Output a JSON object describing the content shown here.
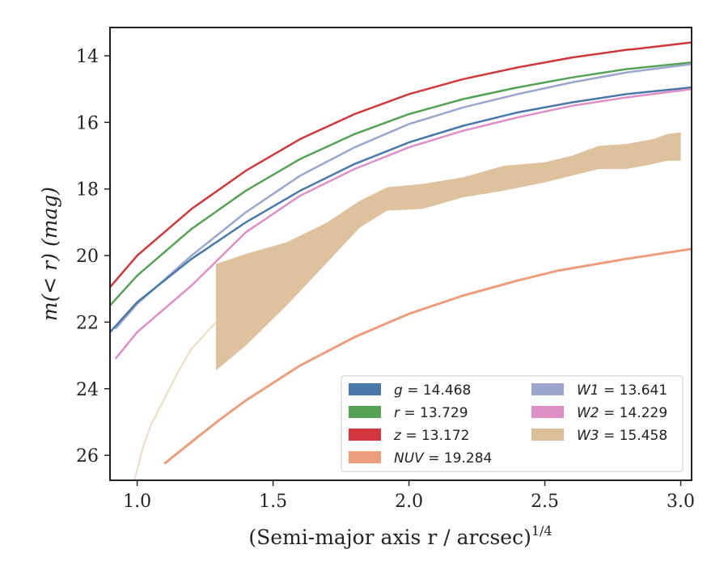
{
  "chart_data": {
    "type": "line",
    "xlabel": "(Semi-major axis r / arcsec)",
    "xlabel_superscript": "1/4",
    "ylabel": "m(< r) (mag)",
    "xlim": [
      0.9,
      3.04
    ],
    "ylim": [
      26.75,
      13.15
    ],
    "y_inverted": true,
    "grid": false,
    "legend_position": "lower-right",
    "x_ticks": [
      1.0,
      1.5,
      2.0,
      2.5,
      3.0
    ],
    "x_tick_labels": [
      "1.0",
      "1.5",
      "2.0",
      "2.5",
      "3.0"
    ],
    "y_ticks": [
      14,
      16,
      18,
      20,
      22,
      24,
      26
    ],
    "y_tick_labels": [
      "14",
      "16",
      "18",
      "20",
      "22",
      "24",
      "26"
    ],
    "series": [
      {
        "name": "z",
        "legend_value": "13.172",
        "color": "#d0363b",
        "kind": "curve",
        "x": [
          0.9,
          1.0,
          1.2,
          1.4,
          1.6,
          1.8,
          2.0,
          2.2,
          2.4,
          2.6,
          2.8,
          2.83,
          3.04
        ],
        "y": [
          20.95,
          20.0,
          18.6,
          17.45,
          16.5,
          15.75,
          15.15,
          14.7,
          14.35,
          14.05,
          13.82,
          13.8,
          13.6
        ]
      },
      {
        "name": "r",
        "legend_value": "13.729",
        "color": "#55a155",
        "kind": "curve",
        "x": [
          0.9,
          1.0,
          1.2,
          1.4,
          1.6,
          1.8,
          2.0,
          2.2,
          2.4,
          2.6,
          2.8,
          3.04
        ],
        "y": [
          21.5,
          20.6,
          19.2,
          18.05,
          17.1,
          16.35,
          15.75,
          15.3,
          14.95,
          14.65,
          14.4,
          14.2
        ]
      },
      {
        "name": "W1",
        "legend_value": "13.641",
        "color": "#9aa6cc",
        "kind": "curve",
        "x": [
          0.92,
          1.0,
          1.2,
          1.4,
          1.6,
          1.8,
          2.0,
          2.2,
          2.4,
          2.6,
          2.8,
          3.04
        ],
        "y": [
          22.2,
          21.45,
          20.0,
          18.7,
          17.6,
          16.75,
          16.05,
          15.55,
          15.15,
          14.8,
          14.5,
          14.25
        ]
      },
      {
        "name": "g",
        "legend_value": "14.468",
        "color": "#4878a8",
        "kind": "curve",
        "x": [
          0.9,
          1.0,
          1.2,
          1.4,
          1.6,
          1.8,
          2.0,
          2.2,
          2.4,
          2.6,
          2.8,
          3.04
        ],
        "y": [
          22.3,
          21.4,
          20.1,
          19.0,
          18.05,
          17.25,
          16.6,
          16.1,
          15.7,
          15.4,
          15.15,
          14.95
        ]
      },
      {
        "name": "W2",
        "legend_value": "14.229",
        "color": "#de8fc6",
        "kind": "curve",
        "x": [
          0.92,
          1.0,
          1.2,
          1.4,
          1.6,
          1.8,
          2.0,
          2.2,
          2.4,
          2.6,
          2.8,
          3.04
        ],
        "y": [
          23.1,
          22.3,
          20.9,
          19.3,
          18.2,
          17.4,
          16.75,
          16.25,
          15.85,
          15.5,
          15.25,
          15.0
        ]
      },
      {
        "name": "NUV",
        "legend_value": "19.284",
        "color": "#ee9d7c",
        "kind": "curve",
        "x": [
          1.1,
          1.2,
          1.3,
          1.4,
          1.6,
          1.8,
          2.0,
          2.2,
          2.4,
          2.55,
          2.8,
          3.04
        ],
        "y": [
          26.25,
          25.6,
          24.95,
          24.35,
          23.3,
          22.45,
          21.75,
          21.2,
          20.75,
          20.45,
          20.1,
          19.8
        ]
      },
      {
        "name": "W3",
        "legend_value": "15.458",
        "color": "#dbbf98",
        "kind": "band",
        "x": [
          1.29,
          1.4,
          1.55,
          1.7,
          1.82,
          1.92,
          2.05,
          2.2,
          2.35,
          2.5,
          2.6,
          2.7,
          2.8,
          2.9,
          2.95,
          3.0
        ],
        "y_low": [
          20.25,
          19.95,
          19.6,
          19.0,
          18.35,
          17.95,
          17.85,
          17.65,
          17.3,
          17.2,
          17.0,
          16.7,
          16.65,
          16.5,
          16.35,
          16.3
        ],
        "y_high": [
          23.45,
          22.7,
          21.5,
          20.2,
          19.15,
          18.65,
          18.6,
          18.25,
          18.05,
          17.8,
          17.6,
          17.4,
          17.4,
          17.25,
          17.15,
          17.15
        ],
        "faint_x": [
          0.99,
          1.02,
          1.05,
          1.1,
          1.15,
          1.2,
          1.29
        ],
        "faint_y": [
          26.75,
          25.8,
          25.1,
          24.3,
          23.5,
          22.8,
          22.0
        ]
      }
    ],
    "legend": [
      {
        "name": "g",
        "value": "14.468",
        "color": "#4878a8"
      },
      {
        "name": "r",
        "value": "13.729",
        "color": "#55a155"
      },
      {
        "name": "z",
        "value": "13.172",
        "color": "#d0363b"
      },
      {
        "name": "NUV",
        "value": "19.284",
        "color": "#ee9d7c"
      },
      {
        "name": "W1",
        "value": "13.641",
        "color": "#9aa6cc"
      },
      {
        "name": "W2",
        "value": "14.229",
        "color": "#de8fc6"
      },
      {
        "name": "W3",
        "value": "15.458",
        "color": "#dbbf98"
      }
    ]
  }
}
